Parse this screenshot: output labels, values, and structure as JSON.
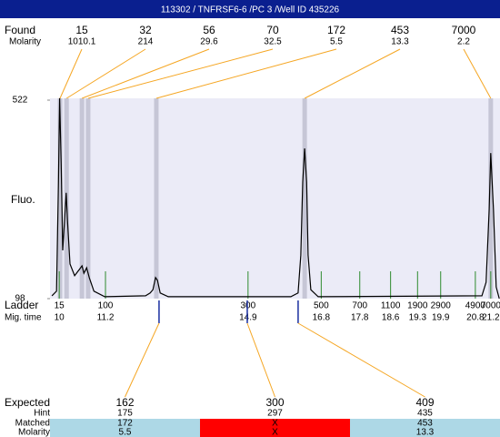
{
  "chart_data": {
    "type": "line",
    "title": "113302 / TNFRSF6-6 /PC 3 /Well ID 435226",
    "ylabel": "Fluo.",
    "ylim": [
      98,
      522
    ],
    "yticks": [
      98,
      522
    ],
    "xlim": [
      9.76,
      21.44
    ],
    "color": "#000000",
    "x": [
      9.81,
      9.93,
      9.98,
      10.01,
      10.05,
      10.09,
      10.14,
      10.18,
      10.21,
      10.28,
      10.4,
      10.52,
      10.59,
      10.64,
      10.71,
      10.78,
      10.9,
      11.18,
      12.24,
      12.36,
      12.43,
      12.5,
      12.55,
      12.62,
      12.83,
      16.01,
      16.2,
      16.27,
      16.32,
      16.37,
      16.42,
      16.46,
      16.53,
      16.72,
      20.97,
      21.08,
      21.16,
      21.2,
      21.27,
      21.34,
      21.42
    ],
    "values": [
      104,
      114,
      347,
      526,
      386,
      201,
      269,
      324,
      269,
      172,
      147,
      160,
      168,
      152,
      164,
      143,
      114,
      102,
      104,
      110,
      117,
      143,
      137,
      110,
      102,
      102,
      110,
      191,
      347,
      419,
      347,
      191,
      117,
      102,
      104,
      133,
      289,
      409,
      289,
      123,
      98
    ],
    "found": {
      "label": "Found",
      "sublabel": "Molarity",
      "sizes": [
        15,
        32,
        56,
        70,
        172,
        453,
        7000
      ],
      "molarity": [
        1010.1,
        214,
        29.6,
        32.5,
        5.5,
        13.3,
        2.2
      ],
      "x": [
        10.02,
        10.19,
        10.59,
        10.75,
        12.52,
        16.37,
        21.2
      ]
    },
    "ladder": {
      "label": "Ladder",
      "sublabel": "Mig. time",
      "sizes": [
        15,
        100,
        300,
        500,
        700,
        1100,
        1900,
        2900,
        4900,
        7000
      ],
      "times": [
        10,
        11.2,
        14.9,
        16.8,
        17.8,
        18.6,
        19.3,
        19.9,
        20.8,
        21.2
      ]
    },
    "expected": {
      "labels": [
        "Expected",
        "Hint",
        "Matched",
        "Molarity"
      ],
      "expected": [
        162,
        300,
        409
      ],
      "hint": [
        175,
        297,
        435
      ],
      "matched": [
        172,
        "X",
        453
      ],
      "molarity": [
        5.5,
        "X",
        13.3
      ],
      "x": [
        12.59,
        14.88,
        16.2
      ],
      "colors": [
        "#add8e6",
        "#ff0000",
        "#add8e6"
      ]
    }
  }
}
